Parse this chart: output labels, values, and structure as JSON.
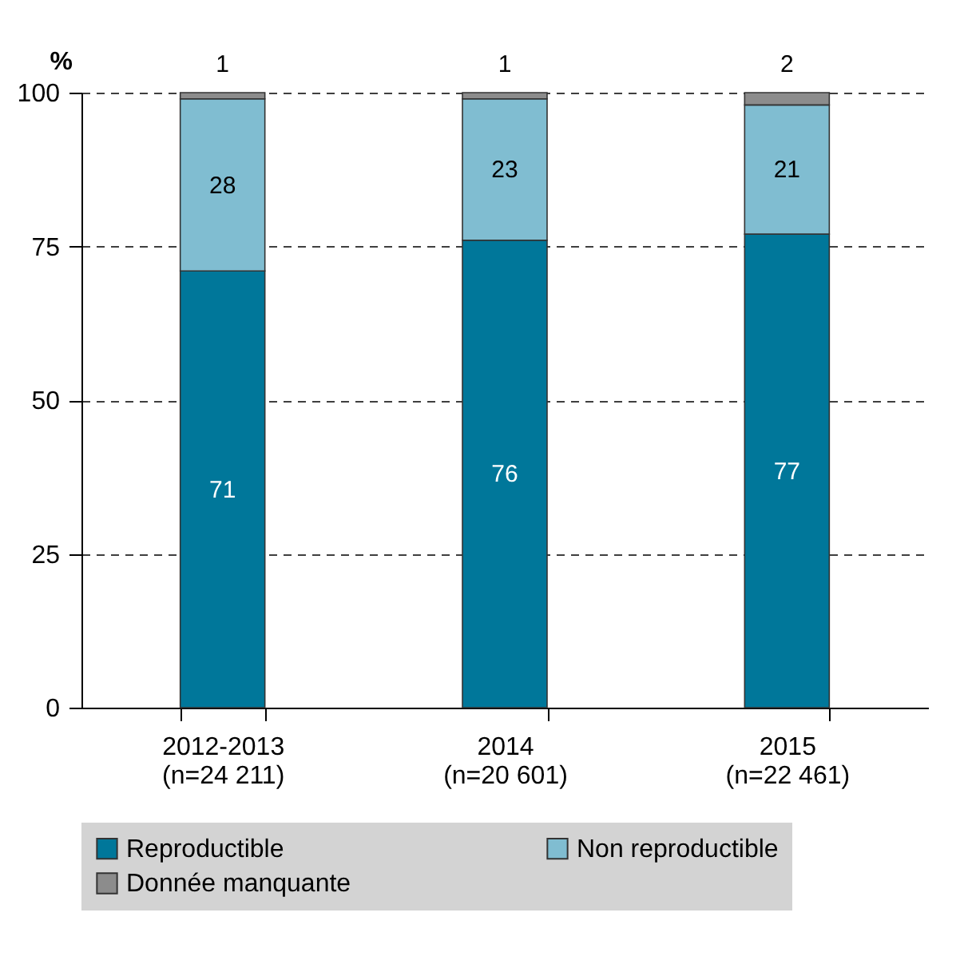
{
  "chart_data": {
    "type": "bar",
    "stacked": true,
    "ylabel": "%",
    "categories": [
      "2012-2013 (n=24 211)",
      "2014 (n=20 601)",
      "2015 (n=22 461)"
    ],
    "series": [
      {
        "name": "Reproductible",
        "color": "#00779a",
        "values": [
          71,
          76,
          77
        ]
      },
      {
        "name": "Non reproductible",
        "color": "#80bdd1",
        "values": [
          28,
          23,
          21
        ]
      },
      {
        "name": "Donnée manquante",
        "color": "#8c8c8c",
        "values": [
          1,
          1,
          2
        ]
      }
    ],
    "ylim": [
      0,
      100
    ],
    "yticks": [
      0,
      25,
      50,
      75,
      100
    ],
    "grid": "y",
    "legend": "bottom",
    "data_labels": true
  }
}
